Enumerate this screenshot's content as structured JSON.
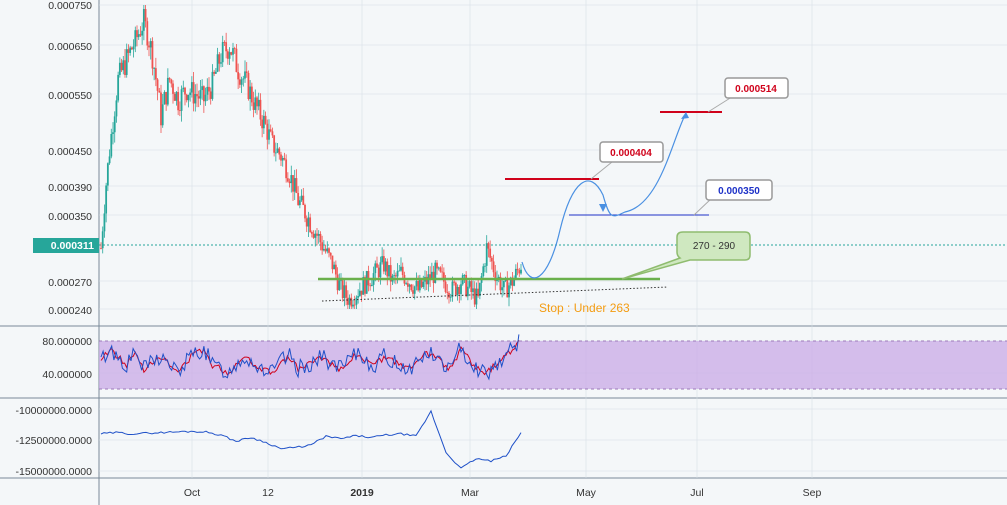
{
  "chart_data": {
    "type": "line",
    "title": "",
    "colors": {
      "background": "#f4f7f9",
      "grid": "#d6dee5",
      "axis": "#7a8a99",
      "candle_up": "#26a69a",
      "candle_down": "#ef5350",
      "current_price": "#26a69a",
      "support": "#6ab04c",
      "resistance": "#d0021b",
      "projection": "#4a90e2",
      "stop_text": "#f39c12",
      "rsi_band": "#c9a9e6",
      "rsi_line": "#1e50c8",
      "rsi_signal": "#d0021b",
      "obv_line": "#1e50c8"
    },
    "price_panel": {
      "y_ticks": [
        "0.000750",
        "0.000650",
        "0.000550",
        "0.000450",
        "0.000390",
        "0.000350",
        "0.000270",
        "0.000240"
      ],
      "current_price_label": "0.000311",
      "support_level": 0.00027,
      "resistance_levels": [
        0.000404,
        0.000514
      ],
      "target_level": 0.00035,
      "annotations": [
        {
          "text": "0.000514",
          "color": "#d0021b"
        },
        {
          "text": "0.000404",
          "color": "#d0021b"
        },
        {
          "text": "0.000350",
          "color": "#1e32c8"
        },
        {
          "text": "270 - 290",
          "color": "#333333"
        }
      ],
      "stop_label": "Stop : Under 263",
      "approx_close_series": [
        0.00031,
        0.00045,
        0.00058,
        0.00062,
        0.00066,
        0.00071,
        0.00063,
        0.00051,
        0.00058,
        0.00054,
        0.00056,
        0.00055,
        0.00054,
        0.00057,
        0.00063,
        0.00065,
        0.0006,
        0.00057,
        0.00053,
        0.0005,
        0.00046,
        0.00044,
        0.00041,
        0.00037,
        0.00035,
        0.00033,
        0.00031,
        0.00029,
        0.00026,
        0.00025,
        0.00026,
        0.00027,
        0.00028,
        0.00029,
        0.00027,
        0.00028,
        0.00027,
        0.00026,
        0.00027,
        0.00028,
        0.00027,
        0.00026,
        0.00027,
        0.00026,
        0.00025,
        0.00031,
        0.00028,
        0.00026,
        0.00027,
        0.00029
      ]
    },
    "rsi_panel": {
      "y_ticks": [
        "80.000000",
        "40.000000"
      ],
      "band": [
        20,
        80
      ],
      "approx_series": [
        55,
        70,
        60,
        50,
        65,
        45,
        55,
        60,
        50,
        40,
        55,
        65,
        70,
        50,
        45,
        40,
        55,
        60,
        50,
        45,
        40,
        55,
        60,
        45,
        50,
        55,
        60,
        50,
        45,
        55,
        65,
        55,
        50,
        60,
        55,
        50,
        45,
        55,
        65,
        60,
        50,
        45,
        75,
        55,
        45,
        40,
        50,
        60,
        70,
        85
      ]
    },
    "obv_panel": {
      "y_ticks": [
        "-10000000.0000",
        "-12500000.0000",
        "-15000000.0000"
      ],
      "approx_series": [
        -12000000,
        -11900000,
        -12000000,
        -11950000,
        -11900000,
        -11850000,
        -11800000,
        -11850000,
        -12100000,
        -12600000,
        -12300000,
        -12700000,
        -13200000,
        -13100000,
        -12900000,
        -12200000,
        -12400000,
        -12150000,
        -12300000,
        -12100000,
        -12000000,
        -12200000,
        -10200000,
        -13500000,
        -14800000,
        -14000000,
        -14200000,
        -13800000,
        -11900000
      ]
    },
    "x_ticks": [
      "Oct",
      "12",
      "2019",
      "Mar",
      "May",
      "Jul",
      "Sep"
    ]
  }
}
